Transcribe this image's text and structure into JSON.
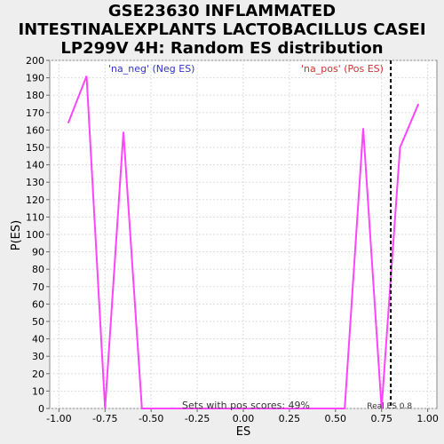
{
  "chart_data": {
    "type": "line",
    "title_lines": [
      "GSE23630 INFLAMMATED",
      "INTESTINALEXPLANTS LACTOBACILLUS CASEI",
      "LP299V 4H: Random ES distribution"
    ],
    "xlabel": "ES",
    "ylabel": "P(ES)",
    "xlim": [
      -1.05,
      1.05
    ],
    "ylim": [
      0,
      200
    ],
    "x_ticks": [
      "-1.00",
      "-0.75",
      "-0.50",
      "-0.25",
      "0.00",
      "0.25",
      "0.50",
      "0.75",
      "1.00"
    ],
    "x_tick_values": [
      -1.0,
      -0.75,
      -0.5,
      -0.25,
      0.0,
      0.25,
      0.5,
      0.75,
      1.0
    ],
    "y_ticks": [
      0,
      10,
      20,
      30,
      40,
      50,
      60,
      70,
      80,
      90,
      100,
      110,
      120,
      130,
      140,
      150,
      160,
      170,
      180,
      190,
      200
    ],
    "grid": true,
    "series": [
      {
        "color": "#ff44ff",
        "x": [
          -0.95,
          -0.85,
          -0.75,
          -0.65,
          -0.55,
          -0.45,
          -0.35,
          -0.25,
          -0.15,
          -0.05,
          0.05,
          0.15,
          0.25,
          0.35,
          0.45,
          0.55,
          0.65,
          0.75,
          0.85,
          0.95
        ],
        "y": [
          164,
          191,
          0,
          159,
          0,
          0,
          0,
          0,
          0,
          0,
          0,
          0,
          0,
          0,
          0,
          0,
          161,
          0,
          150,
          175
        ]
      }
    ],
    "real_es": 0.8,
    "real_es_label": "Real ES 0.8",
    "legend": {
      "neg_label": "'na_neg' (Neg ES)",
      "pos_label": "'na_pos' (Pos ES)"
    },
    "annotation": "Sets with pos scores: 49%"
  },
  "colors": {
    "line": "#ff44ff",
    "neg_legend": "#3333cc",
    "pos_legend": "#cc3333",
    "real_es_line": "#000000",
    "grid": "#dddddd"
  }
}
